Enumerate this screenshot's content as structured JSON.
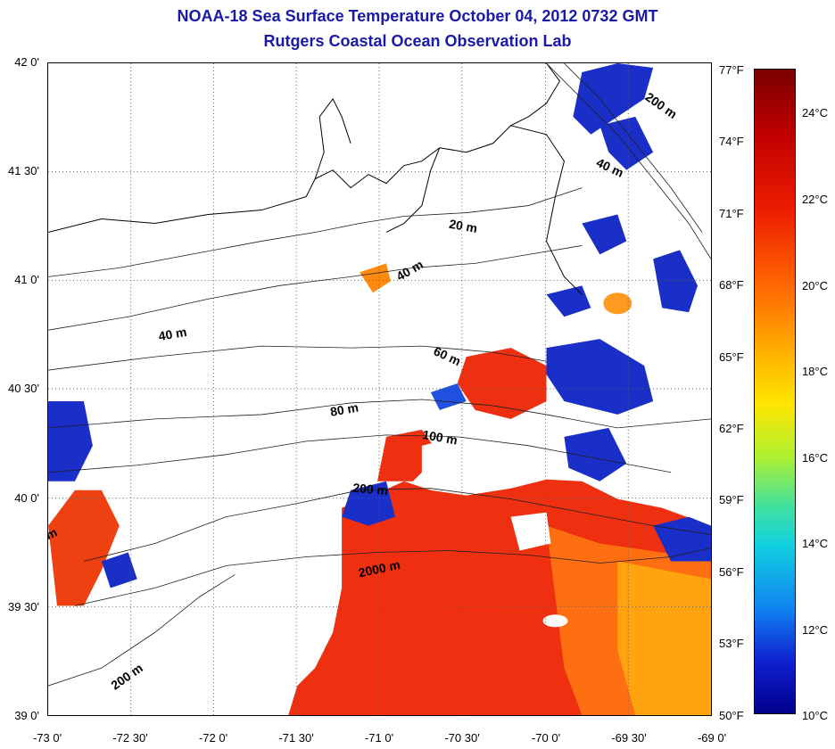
{
  "title": "NOAA-18 Sea Surface Temperature October 04, 2012 0732 GMT",
  "subtitle": "Rutgers Coastal Ocean Observation Lab",
  "lat_ticks": [
    "42 0'",
    "41 30'",
    "41 0'",
    "40 30'",
    "40 0'",
    "39 30'",
    "39 0'"
  ],
  "lon_ticks": [
    "-73 0'",
    "-72 30'",
    "-72 0'",
    "-71 30'",
    "-71 0'",
    "-70 30'",
    "-70 0'",
    "-69 30'",
    "-69 0'"
  ],
  "fahrenheit_ticks": [
    "77°F",
    "74°F",
    "71°F",
    "68°F",
    "65°F",
    "62°F",
    "59°F",
    "56°F",
    "53°F",
    "50°F"
  ],
  "celsius_ticks": [
    "24°C",
    "22°C",
    "20°C",
    "18°C",
    "16°C",
    "14°C",
    "12°C",
    "10°C"
  ],
  "contour_labels": [
    "200 m",
    "40 m",
    "20 m",
    "40 m",
    "40 m",
    "60 m",
    "80 m",
    "100 m",
    "200 m",
    "2000 m",
    "200 m",
    "m"
  ],
  "colors": {
    "title": "#1a1aa6",
    "warm": "#ee3010",
    "cold": "#1a2ec8",
    "land_line": "#000000",
    "grid": "#606060"
  }
}
